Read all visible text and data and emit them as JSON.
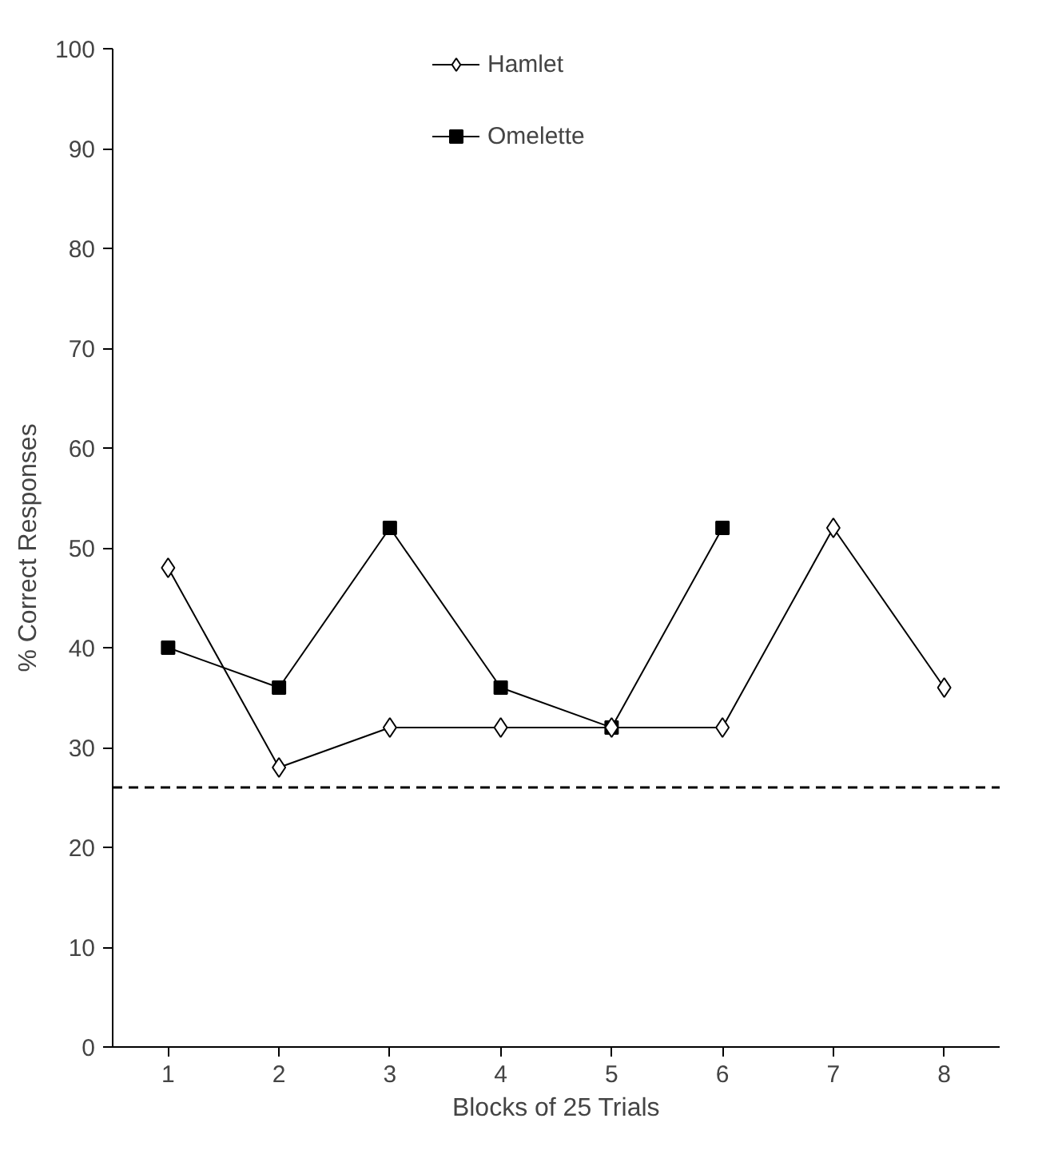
{
  "chart_data": {
    "type": "line",
    "xlabel": "Blocks of 25 Trials",
    "ylabel": "% Correct Responses",
    "categories": [
      "1",
      "2",
      "3",
      "4",
      "5",
      "6",
      "7",
      "8"
    ],
    "series": [
      {
        "name": "Hamlet",
        "color": "#000000",
        "marker": "diamond",
        "values": [
          48,
          28,
          32,
          32,
          32,
          32,
          52,
          36
        ]
      },
      {
        "name": "Omelette",
        "color": "#000000",
        "marker": "square",
        "values": [
          40,
          36,
          52,
          36,
          32,
          52,
          null,
          null
        ]
      }
    ],
    "ylim": [
      0,
      100
    ],
    "yticks": [
      0,
      10,
      20,
      30,
      40,
      50,
      60,
      70,
      80,
      90,
      100
    ],
    "grid": false,
    "legend": "top",
    "ref_lines": [
      {
        "axis": "y",
        "value": 26,
        "label": null,
        "color": "#000000",
        "line_style": "dashed"
      }
    ]
  }
}
